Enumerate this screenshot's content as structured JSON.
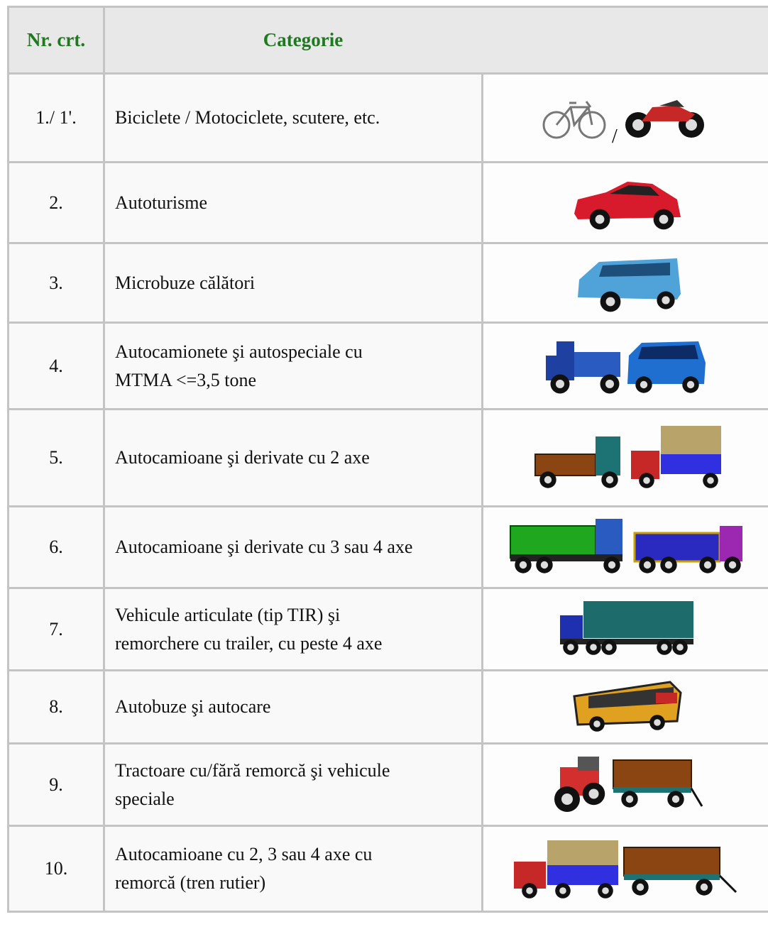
{
  "table": {
    "header": {
      "number": "Nr. crt.",
      "category": "Categorie"
    },
    "rows": [
      {
        "number": "1./ 1'.",
        "lines": [
          "Biciclete / Motociclete, scutere, etc."
        ],
        "icon_separator": "/"
      },
      {
        "number": "2.",
        "lines": [
          "Autoturisme"
        ]
      },
      {
        "number": "3.",
        "lines": [
          "Microbuze călători"
        ]
      },
      {
        "number": "4.",
        "lines": [
          "Autocamionete şi autospeciale cu",
          "MTMA <=3,5 tone"
        ]
      },
      {
        "number": "5.",
        "lines": [
          "Autocamioane şi derivate cu 2 axe"
        ]
      },
      {
        "number": "6.",
        "lines": [
          "Autocamioane şi derivate cu 3 sau 4 axe"
        ]
      },
      {
        "number": "7.",
        "lines": [
          "Vehicule articulate (tip TIR) şi",
          "remorchere cu trailer, cu peste 4 axe"
        ]
      },
      {
        "number": "8.",
        "lines": [
          "Autobuze şi autocare"
        ]
      },
      {
        "number": "9.",
        "lines": [
          "Tractoare cu/fără remorcă şi vehicule",
          "speciale"
        ]
      },
      {
        "number": "10.",
        "lines": [
          "Autocamioane cu 2, 3 sau 4 axe cu",
          "remorcă (tren rutier)"
        ]
      }
    ]
  }
}
